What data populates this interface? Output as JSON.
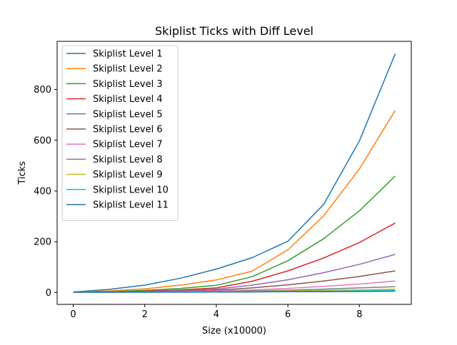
{
  "chart_data": {
    "type": "line",
    "title": "Skiplist Ticks with Diff Level",
    "xlabel": "Size (x10000)",
    "ylabel": "Ticks",
    "xlim": [
      -0.45,
      9.45
    ],
    "ylim": [
      -47,
      990
    ],
    "x_ticks": [
      0,
      2,
      4,
      6,
      8
    ],
    "y_ticks": [
      0,
      200,
      400,
      600,
      800
    ],
    "grid": false,
    "legend_position": "top-left",
    "x": [
      0,
      1,
      2,
      3,
      4,
      5,
      6,
      7,
      8,
      9
    ],
    "series": [
      {
        "name": "Skiplist Level 1",
        "color": "#1f77b4",
        "values": [
          2,
          12,
          29,
          56,
          92,
          137,
          202,
          347,
          598,
          941
        ]
      },
      {
        "name": "Skiplist Level 2",
        "color": "#ff7f0e",
        "values": [
          1,
          6,
          14,
          29,
          49,
          84,
          168,
          302,
          487,
          718
        ]
      },
      {
        "name": "Skiplist Level 3",
        "color": "#2ca02c",
        "values": [
          1,
          3,
          8,
          16,
          28,
          62,
          125,
          212,
          322,
          459
        ]
      },
      {
        "name": "Skiplist Level 4",
        "color": "#d62728",
        "values": [
          1,
          2,
          5,
          10,
          18,
          44,
          85,
          136,
          197,
          274
        ]
      },
      {
        "name": "Skiplist Level 5",
        "color": "#9467bd",
        "values": [
          1,
          2,
          4,
          7,
          13,
          29,
          50,
          78,
          111,
          150
        ]
      },
      {
        "name": "Skiplist Level 6",
        "color": "#8c564b",
        "values": [
          1,
          1,
          3,
          5,
          9,
          18,
          30,
          45,
          63,
          85
        ]
      },
      {
        "name": "Skiplist Level 7",
        "color": "#e377c2",
        "values": [
          1,
          1,
          2,
          4,
          6,
          10,
          16,
          24,
          33,
          45
        ]
      },
      {
        "name": "Skiplist Level 8",
        "color": "#7f7f7f",
        "values": [
          1,
          1,
          2,
          3,
          4,
          6,
          9,
          13,
          18,
          23
        ]
      },
      {
        "name": "Skiplist Level 9",
        "color": "#bcbd22",
        "values": [
          1,
          1,
          1,
          2,
          3,
          4,
          6,
          8,
          10,
          13
        ]
      },
      {
        "name": "Skiplist Level 10",
        "color": "#17becf",
        "values": [
          1,
          1,
          1,
          2,
          2,
          3,
          4,
          5,
          6,
          8
        ]
      },
      {
        "name": "Skiplist Level 11",
        "color": "#1f77b4",
        "values": [
          1,
          1,
          1,
          1,
          2,
          2,
          3,
          3,
          4,
          5
        ]
      }
    ]
  }
}
